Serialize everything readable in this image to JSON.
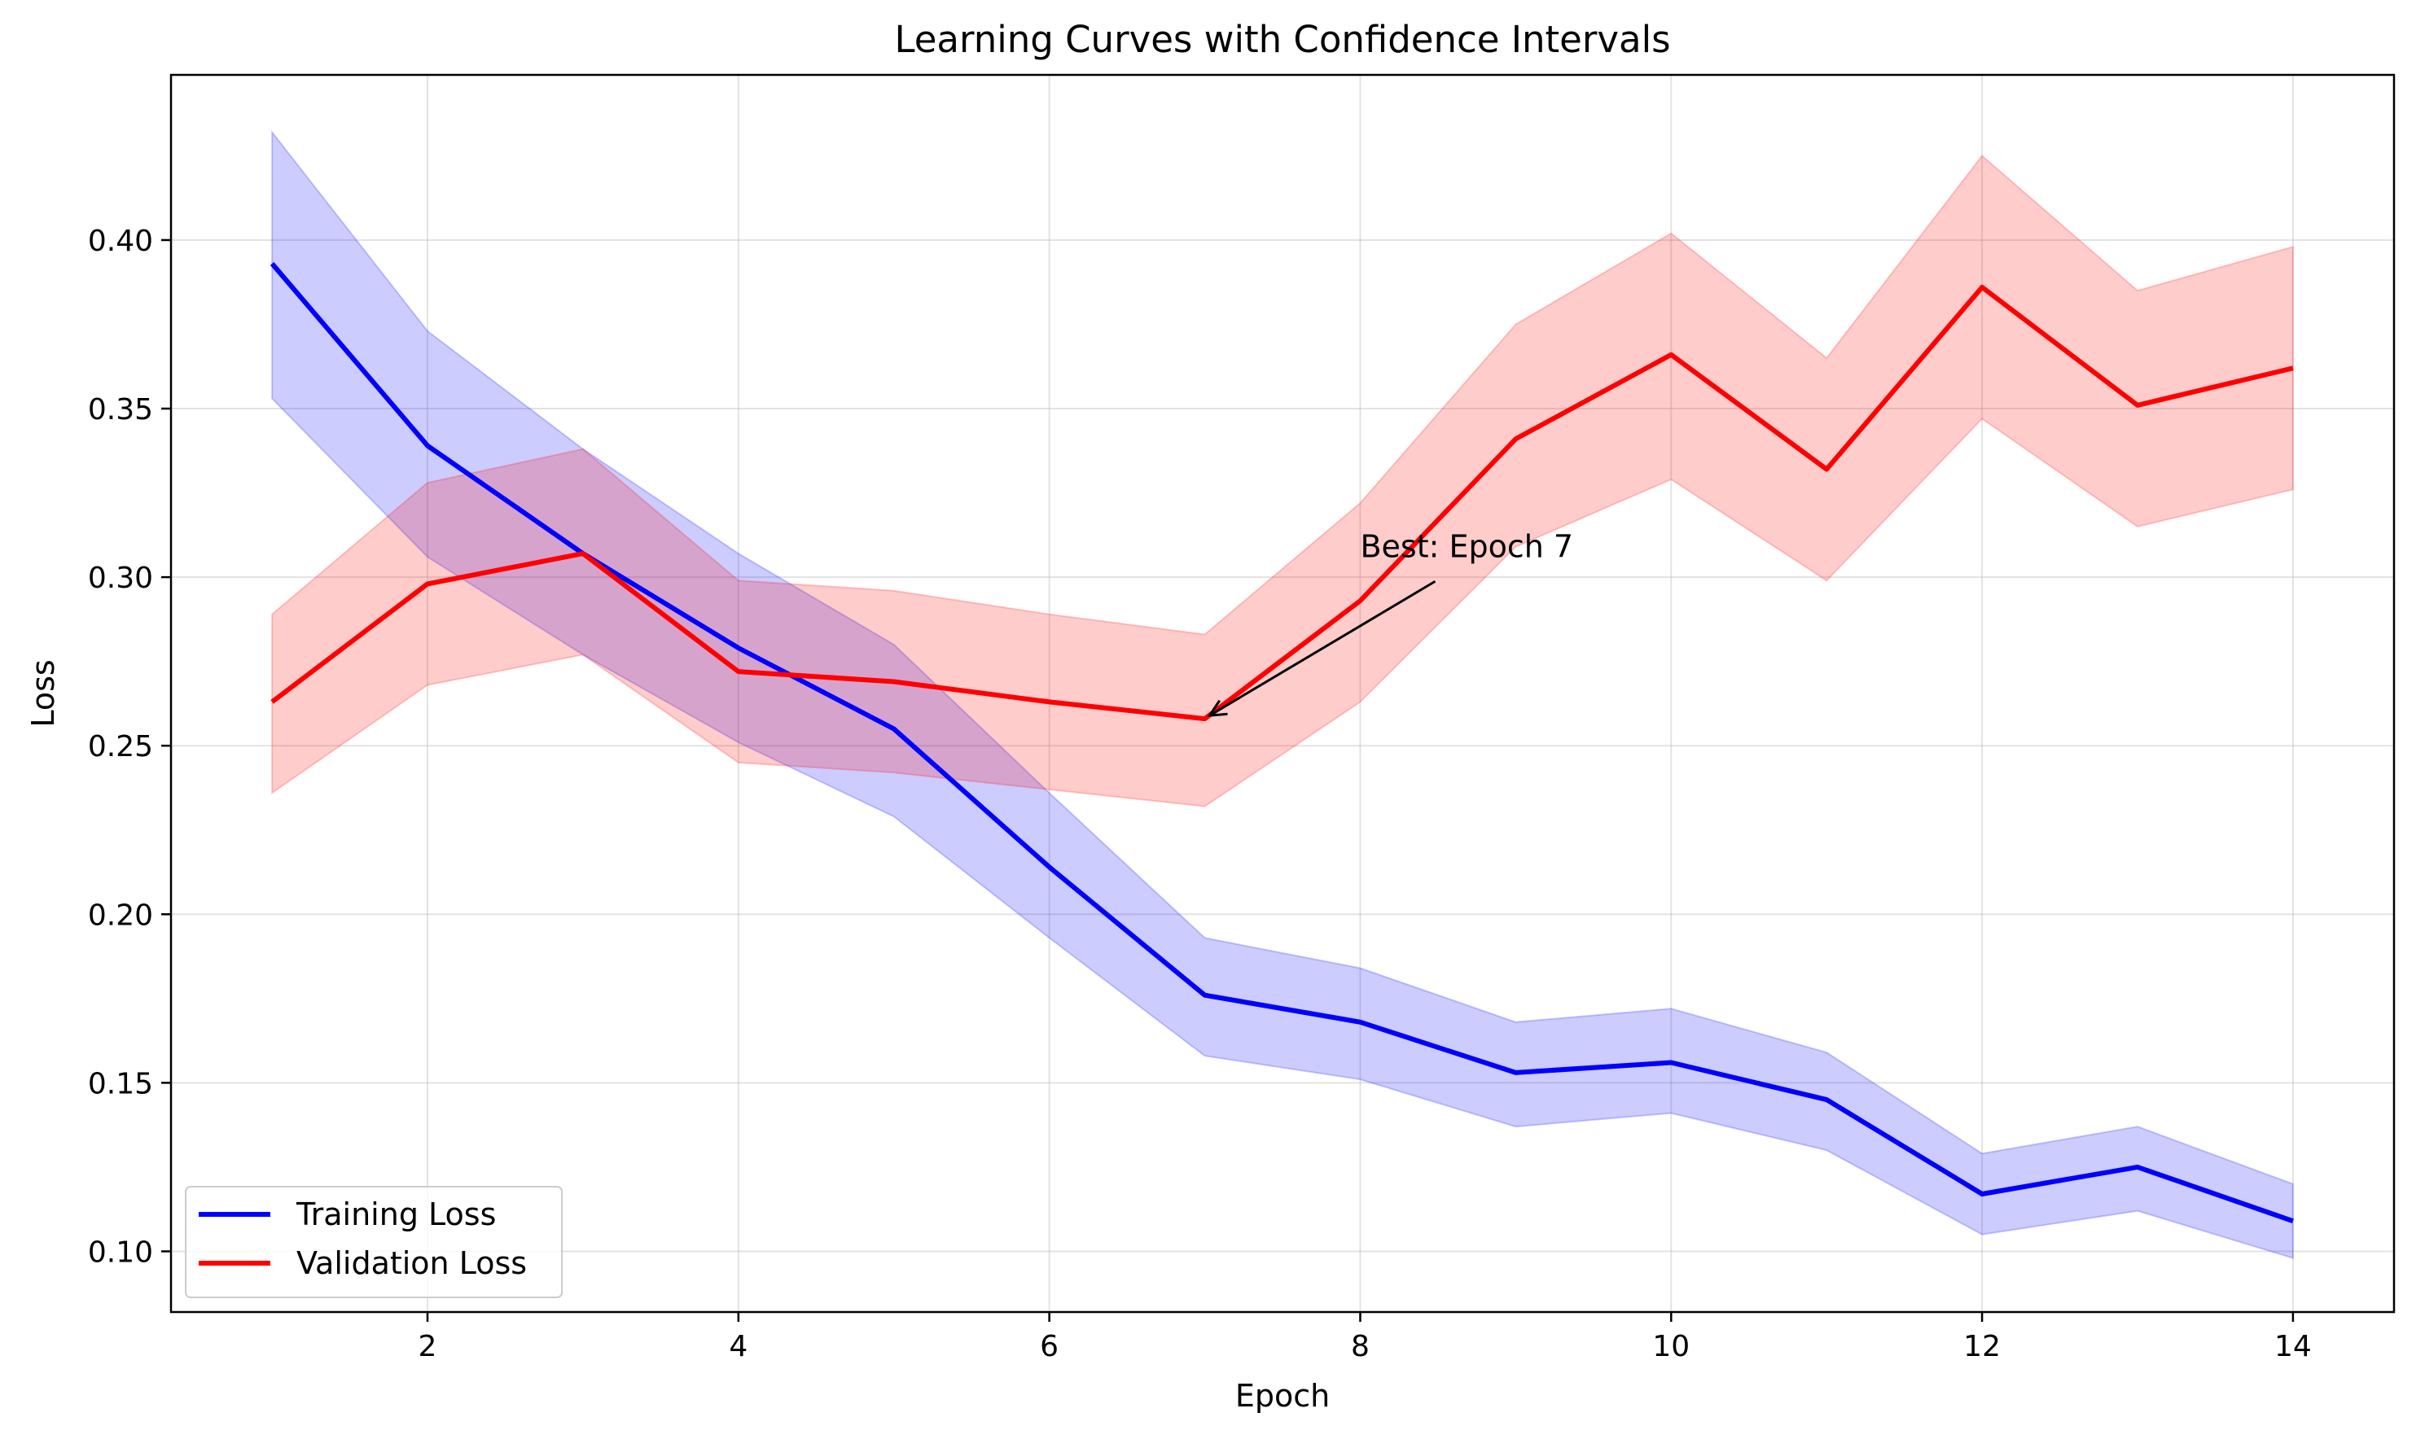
{
  "chart_data": {
    "type": "line",
    "title": "Learning Curves with Confidence Intervals",
    "xlabel": "Epoch",
    "ylabel": "Loss",
    "x": [
      1,
      2,
      3,
      4,
      5,
      6,
      7,
      8,
      9,
      10,
      11,
      12,
      13,
      14
    ],
    "xlim": [
      0.35,
      14.65
    ],
    "ylim": [
      0.082,
      0.449
    ],
    "xticks": [
      2,
      4,
      6,
      8,
      10,
      12,
      14
    ],
    "xtick_labels": [
      "2",
      "4",
      "6",
      "8",
      "10",
      "12",
      "14"
    ],
    "yticks": [
      0.1,
      0.15,
      0.2,
      0.25,
      0.3,
      0.35,
      0.4
    ],
    "ytick_labels": [
      "0.10",
      "0.15",
      "0.20",
      "0.25",
      "0.30",
      "0.35",
      "0.40"
    ],
    "grid": true,
    "legend_position": "lower-left",
    "series": [
      {
        "name": "Training Loss",
        "color": "#0000ff",
        "band_color": "#0000ff",
        "values": [
          0.393,
          0.339,
          0.307,
          0.279,
          0.255,
          0.214,
          0.176,
          0.168,
          0.153,
          0.156,
          0.145,
          0.117,
          0.125,
          0.109
        ],
        "lower": [
          0.353,
          0.306,
          0.277,
          0.251,
          0.229,
          0.193,
          0.158,
          0.151,
          0.137,
          0.141,
          0.13,
          0.105,
          0.112,
          0.098
        ],
        "upper": [
          0.432,
          0.373,
          0.338,
          0.307,
          0.28,
          0.236,
          0.193,
          0.184,
          0.168,
          0.172,
          0.159,
          0.129,
          0.137,
          0.12
        ]
      },
      {
        "name": "Validation Loss",
        "color": "#ff0000",
        "band_color": "#ff0000",
        "values": [
          0.263,
          0.298,
          0.307,
          0.272,
          0.269,
          0.263,
          0.258,
          0.293,
          0.341,
          0.366,
          0.332,
          0.386,
          0.351,
          0.362
        ],
        "lower": [
          0.236,
          0.268,
          0.277,
          0.245,
          0.242,
          0.237,
          0.232,
          0.263,
          0.309,
          0.329,
          0.299,
          0.347,
          0.315,
          0.326
        ],
        "upper": [
          0.289,
          0.328,
          0.338,
          0.299,
          0.296,
          0.289,
          0.283,
          0.322,
          0.375,
          0.402,
          0.365,
          0.425,
          0.385,
          0.398
        ]
      }
    ],
    "annotation": {
      "text": "Best: Epoch 7",
      "point": [
        7,
        0.258
      ],
      "text_position": [
        8,
        0.306
      ]
    }
  }
}
